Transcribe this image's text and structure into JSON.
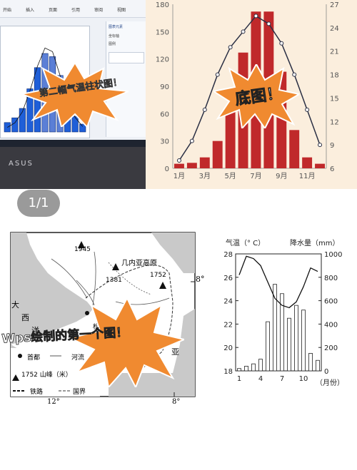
{
  "laptop": {
    "caption": "第二幅气温柱状图！",
    "brand": "ASUS",
    "ribbon_tabs": [
      "开始",
      "插入",
      "页面",
      "引用",
      "审阅",
      "视图"
    ],
    "sidepane_title": "图表元素",
    "sidepane_items": [
      "坐标轴",
      "图例"
    ],
    "bar_values": [
      12,
      18,
      30,
      55,
      82,
      100,
      96,
      72,
      40,
      20,
      10
    ],
    "line_values": [
      5,
      10,
      22,
      45,
      72,
      92,
      88,
      62,
      34,
      16,
      6
    ]
  },
  "counter": {
    "text": "1/1"
  },
  "base_chart": {
    "caption": "底图！",
    "colors": {
      "bar": "#c0292b",
      "line": "#2a2f44",
      "background": "#fbeedd"
    }
  },
  "chart_data": [
    {
      "type": "bar",
      "series": [
        {
          "values": [
            5,
            6,
            12,
            30,
            66,
            127,
            172,
            172,
            106,
            42,
            12,
            5
          ]
        },
        {
          "type": "line",
          "values": [
            7,
            9.5,
            13.5,
            18,
            21.5,
            23.5,
            25.5,
            24.5,
            22,
            18,
            13.5,
            9
          ]
        }
      ],
      "categories": [
        "1月",
        "2月",
        "3月",
        "4月",
        "5月",
        "6月",
        "7月",
        "8月",
        "9月",
        "10月",
        "11月",
        "12月"
      ],
      "x_tick_labels": [
        "1月",
        "3月",
        "5月",
        "7月",
        "9月",
        "11月"
      ],
      "ylim_left": [
        0,
        180
      ],
      "left_ticks": [
        "0",
        "30",
        "60",
        "90",
        "120",
        "150",
        "180"
      ],
      "ylim_right": [
        6,
        27
      ],
      "right_ticks": [
        "6",
        "9",
        "12",
        "15",
        "18",
        "21",
        "24",
        "27"
      ]
    },
    {
      "type": "bar",
      "title_left": "气温（° C）",
      "title_right": "降水量（mm）",
      "xlabel": "（月份）",
      "series": [
        {
          "type": "bar",
          "values": [
            20,
            40,
            60,
            100,
            420,
            740,
            660,
            450,
            560,
            520,
            150,
            90
          ]
        },
        {
          "type": "line",
          "values": [
            26.2,
            27.8,
            27.6,
            27.0,
            25.6,
            24.2,
            23.6,
            23.4,
            23.9,
            25.2,
            26.8,
            26.5
          ]
        }
      ],
      "categories": [
        "1",
        "2",
        "3",
        "4",
        "5",
        "6",
        "7",
        "8",
        "9",
        "10",
        "11",
        "12"
      ],
      "x_tick_labels": [
        "1",
        "4",
        "7",
        "10"
      ],
      "left_ticks": [
        "18",
        "20",
        "22",
        "24",
        "26",
        "28"
      ],
      "right_ticks": [
        "0",
        "200",
        "400",
        "600",
        "800",
        "1000"
      ],
      "ylim_left": [
        18,
        28
      ],
      "ylim_right": [
        0,
        1000
      ]
    }
  ],
  "map": {
    "caption": "Wps绘制的第一个图！",
    "label_plateau": "几内亚高原",
    "peaks": [
      "1945",
      "1381",
      "1752"
    ],
    "lat_label": "8°",
    "bottom_left_lon": "12°",
    "bottom_right_lon": "8°",
    "ocean_label_1": "大",
    "ocean_label_2": "西",
    "ocean_label_3": "洋",
    "country_label_1": "利",
    "country_label_2": "亚",
    "town_label": "松",
    "legend": {
      "capital": "首都",
      "river": "河流",
      "peak": "1752 山峰（米）",
      "rail": "铁路",
      "border": "国界"
    }
  }
}
